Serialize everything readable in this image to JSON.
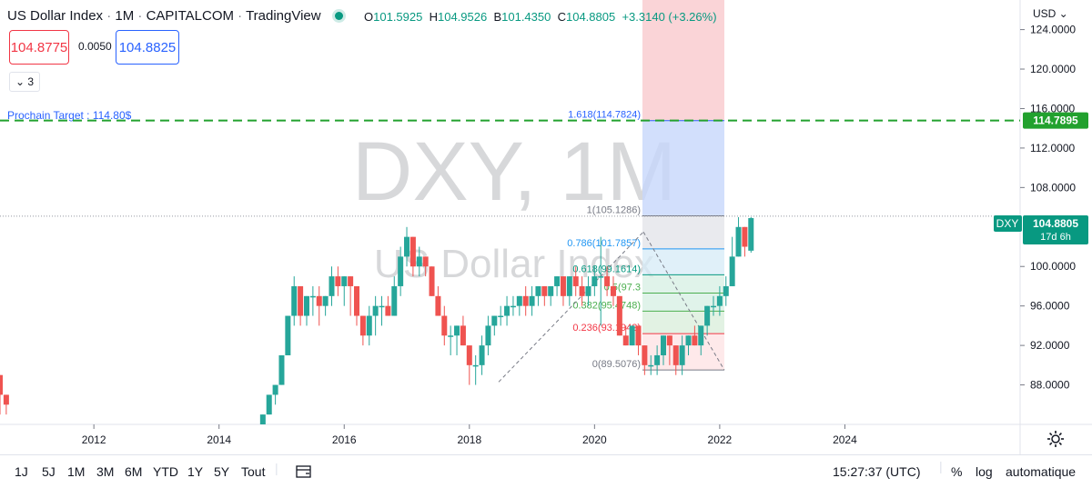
{
  "header": {
    "symbol": "US Dollar Index",
    "interval": "1M",
    "exchange": "CAPITALCOM",
    "source": "TradingView",
    "o_label": "O",
    "open": "101.5925",
    "h_label": "H",
    "high": "104.9526",
    "b_label": "B",
    "low": "101.4350",
    "c_label": "C",
    "close": "104.8805",
    "change": "+3.3140 (+3.26%)"
  },
  "trade": {
    "sell": "104.8775",
    "spread": "0.0050",
    "buy": "104.8825",
    "indicator_count": "3"
  },
  "currency_menu": "USD",
  "watermark": {
    "line1": "DXY, 1M",
    "line2": "US Dollar Index"
  },
  "target_note": "Prochain Target : 114.80$",
  "price_badges": {
    "target": "114.7895",
    "symbol": "DXY",
    "last": "104.8805",
    "countdown": "17d 6h"
  },
  "bottom_bar": {
    "ranges": [
      "1J",
      "5J",
      "1M",
      "3M",
      "6M",
      "YTD",
      "1Y",
      "5Y",
      "Tout"
    ],
    "time": "15:27:37 (UTC)",
    "percent": "%",
    "log": "log",
    "auto": "automatique"
  },
  "colors": {
    "up": "#26a69a",
    "down": "#ef5350",
    "target_line": "#22a12e",
    "fib_top": "#f7b7bd",
    "fib_ext": "#c7d7fb"
  },
  "chart_data": {
    "type": "candlestick",
    "title": "US Dollar Index",
    "x_ticks": [
      "2012",
      "2014",
      "2016",
      "2018",
      "2020",
      "2022",
      "2024"
    ],
    "y_ticks": [
      "124.0000",
      "120.0000",
      "116.0000",
      "112.0000",
      "108.0000",
      "100.0000",
      "96.0000",
      "92.0000",
      "88.0000"
    ],
    "ylim": [
      84,
      127
    ],
    "xlim": [
      2010.5,
      2026.8
    ],
    "target_level": 114.7895,
    "last_price": 104.8805,
    "fibonacci": [
      {
        "ratio": "1.618",
        "price": "114.7824",
        "label": "1.618(114.7824)",
        "color": "#2962ff"
      },
      {
        "ratio": "1",
        "price": "105.1286",
        "label": "1(105.1286)",
        "color": "#787b86"
      },
      {
        "ratio": "0.786",
        "price": "101.7857",
        "label": "0.786(101.7857)",
        "color": "#2196f3"
      },
      {
        "ratio": "0.618",
        "price": "99.1614",
        "label": "0.618(99.1614)",
        "color": "#089981"
      },
      {
        "ratio": "0.5",
        "price": "97.3",
        "label": "0.5(97.3",
        "color": "#4caf50"
      },
      {
        "ratio": "0.382",
        "price": "95.4748",
        "label": "0.382(95.4748)",
        "color": "#4caf50"
      },
      {
        "ratio": "0.236",
        "price": "93.1942",
        "label": "0.236(93.1942)",
        "color": "#f23645"
      },
      {
        "ratio": "0",
        "price": "89.5076",
        "label": "0(89.5076)",
        "color": "#787b86"
      }
    ],
    "candles": [
      [
        2010.5,
        89,
        87,
        89,
        85
      ],
      [
        2010.6,
        87,
        86,
        87,
        85
      ],
      [
        2014.7,
        84,
        85,
        85,
        84
      ],
      [
        2014.8,
        85,
        87,
        87,
        85
      ],
      [
        2014.9,
        87,
        88,
        88,
        86
      ],
      [
        2015.0,
        88,
        91,
        91,
        88
      ],
      [
        2015.1,
        91,
        95,
        95,
        91
      ],
      [
        2015.2,
        95,
        98,
        99,
        94
      ],
      [
        2015.3,
        98,
        95,
        98,
        94
      ],
      [
        2015.4,
        95,
        97,
        97,
        94
      ],
      [
        2015.5,
        97,
        97,
        98,
        95
      ],
      [
        2015.6,
        97,
        96,
        98,
        94
      ],
      [
        2015.7,
        96,
        97,
        97,
        95
      ],
      [
        2015.8,
        97,
        99,
        100,
        96
      ],
      [
        2015.9,
        99,
        98,
        100,
        97
      ],
      [
        2016.0,
        98,
        99,
        99,
        96
      ],
      [
        2016.1,
        99,
        98,
        99,
        95
      ],
      [
        2016.2,
        98,
        95,
        98,
        94
      ],
      [
        2016.3,
        95,
        93,
        95,
        92
      ],
      [
        2016.4,
        93,
        95,
        96,
        92
      ],
      [
        2016.5,
        95,
        96,
        97,
        93
      ],
      [
        2016.6,
        96,
        96,
        97,
        94
      ],
      [
        2016.7,
        96,
        95,
        97,
        95
      ],
      [
        2016.8,
        95,
        98,
        99,
        95
      ],
      [
        2016.9,
        98,
        101,
        102,
        97
      ],
      [
        2017.0,
        101,
        103,
        104,
        100
      ],
      [
        2017.1,
        103,
        100,
        103,
        99
      ],
      [
        2017.2,
        100,
        101,
        102,
        99
      ],
      [
        2017.3,
        101,
        100,
        101,
        99
      ],
      [
        2017.4,
        100,
        97,
        100,
        97
      ],
      [
        2017.5,
        97,
        95,
        98,
        95
      ],
      [
        2017.6,
        95,
        93,
        96,
        92
      ],
      [
        2017.7,
        93,
        93,
        94,
        91
      ],
      [
        2017.8,
        93,
        94,
        94,
        91
      ],
      [
        2017.9,
        94,
        92,
        95,
        92
      ],
      [
        2018.0,
        92,
        90,
        92,
        88
      ],
      [
        2018.1,
        90,
        90,
        91,
        88
      ],
      [
        2018.2,
        90,
        92,
        93,
        89
      ],
      [
        2018.3,
        92,
        94,
        95,
        91
      ],
      [
        2018.4,
        94,
        95,
        95,
        93
      ],
      [
        2018.5,
        95,
        95,
        96,
        94
      ],
      [
        2018.6,
        95,
        96,
        97,
        94
      ],
      [
        2018.7,
        96,
        96,
        97,
        95
      ],
      [
        2018.8,
        96,
        97,
        97,
        95
      ],
      [
        2018.9,
        97,
        96,
        98,
        95
      ],
      [
        2019.0,
        96,
        97,
        98,
        95
      ],
      [
        2019.1,
        97,
        98,
        98,
        96
      ],
      [
        2019.2,
        98,
        97,
        98,
        96
      ],
      [
        2019.3,
        97,
        98,
        98,
        96
      ],
      [
        2019.4,
        98,
        99,
        99,
        97
      ],
      [
        2019.5,
        99,
        97,
        99,
        96
      ],
      [
        2019.6,
        97,
        99,
        99,
        96
      ],
      [
        2019.7,
        99,
        98,
        100,
        97
      ],
      [
        2019.8,
        98,
        97,
        99,
        96
      ],
      [
        2019.9,
        97,
        98,
        99,
        96
      ],
      [
        2020.0,
        98,
        99,
        100,
        97
      ],
      [
        2020.1,
        99,
        99,
        103,
        94
      ],
      [
        2020.2,
        99,
        98,
        100,
        97
      ],
      [
        2020.3,
        98,
        97,
        99,
        96
      ],
      [
        2020.4,
        97,
        93,
        97,
        93
      ],
      [
        2020.5,
        93,
        92,
        94,
        92
      ],
      [
        2020.6,
        92,
        94,
        94,
        92
      ],
      [
        2020.7,
        94,
        92,
        94,
        91
      ],
      [
        2020.8,
        92,
        90,
        92,
        89
      ],
      [
        2020.9,
        90,
        90,
        91,
        89
      ],
      [
        2021.0,
        90,
        91,
        92,
        89
      ],
      [
        2021.1,
        91,
        93,
        93,
        90
      ],
      [
        2021.2,
        93,
        92,
        93,
        90
      ],
      [
        2021.3,
        92,
        90,
        92,
        89
      ],
      [
        2021.4,
        90,
        92,
        93,
        89
      ],
      [
        2021.5,
        92,
        93,
        93,
        91
      ],
      [
        2021.6,
        93,
        92,
        94,
        92
      ],
      [
        2021.7,
        92,
        94,
        94,
        91
      ],
      [
        2021.8,
        94,
        96,
        96,
        93
      ],
      [
        2021.9,
        96,
        96,
        97,
        95
      ],
      [
        2022.0,
        96,
        97,
        98,
        95
      ],
      [
        2022.1,
        97,
        98,
        99,
        96
      ],
      [
        2022.2,
        98,
        101,
        103,
        98
      ],
      [
        2022.3,
        101,
        104,
        105,
        101
      ],
      [
        2022.4,
        104,
        102,
        104,
        101
      ],
      [
        2022.5,
        101.6,
        104.9,
        105,
        101.4
      ]
    ]
  }
}
